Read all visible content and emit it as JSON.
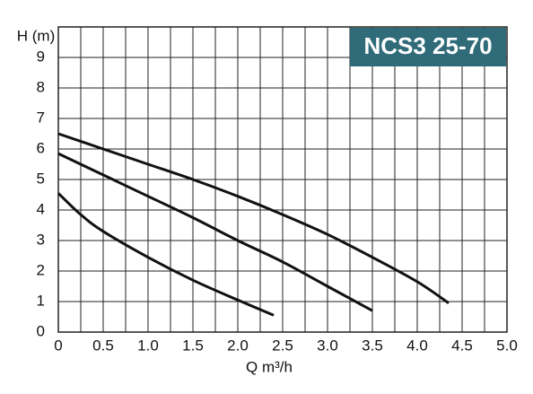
{
  "chart_data": {
    "type": "line",
    "title": "NCS3 25-70",
    "xlabel": "Q m³/h",
    "ylabel": "H (m)",
    "xlim": [
      0,
      5
    ],
    "ylim": [
      0,
      10
    ],
    "xticks": [
      0,
      0.5,
      {
        "value": 1,
        "label": "1.0"
      },
      1.5,
      {
        "value": 2,
        "label": "2.0"
      },
      2.5,
      {
        "value": 3,
        "label": "3.0"
      },
      3.5,
      {
        "value": 4,
        "label": "4.0"
      },
      4.5,
      {
        "value": 5,
        "label": "5.0"
      }
    ],
    "yticks": [
      0,
      1,
      2,
      3,
      4,
      5,
      6,
      7,
      8,
      9
    ],
    "grid": true,
    "series": [
      {
        "color": "#111111",
        "x": [
          0,
          0.5,
          1.0,
          1.5,
          2.0,
          2.5,
          3.0,
          3.5,
          4.0,
          4.35
        ],
        "values": [
          6.5,
          6.0,
          5.5,
          5.0,
          4.45,
          3.85,
          3.2,
          2.45,
          1.65,
          0.95
        ]
      },
      {
        "color": "#111111",
        "x": [
          0,
          0.5,
          1.0,
          1.5,
          2.0,
          2.5,
          3.0,
          3.5
        ],
        "values": [
          5.85,
          5.15,
          4.45,
          3.75,
          3.0,
          2.3,
          1.5,
          0.7
        ]
      },
      {
        "color": "#111111",
        "x": [
          0,
          0.25,
          0.5,
          1.0,
          1.5,
          2.0,
          2.4
        ],
        "values": [
          4.55,
          3.85,
          3.3,
          2.45,
          1.7,
          1.05,
          0.55
        ]
      }
    ]
  }
}
